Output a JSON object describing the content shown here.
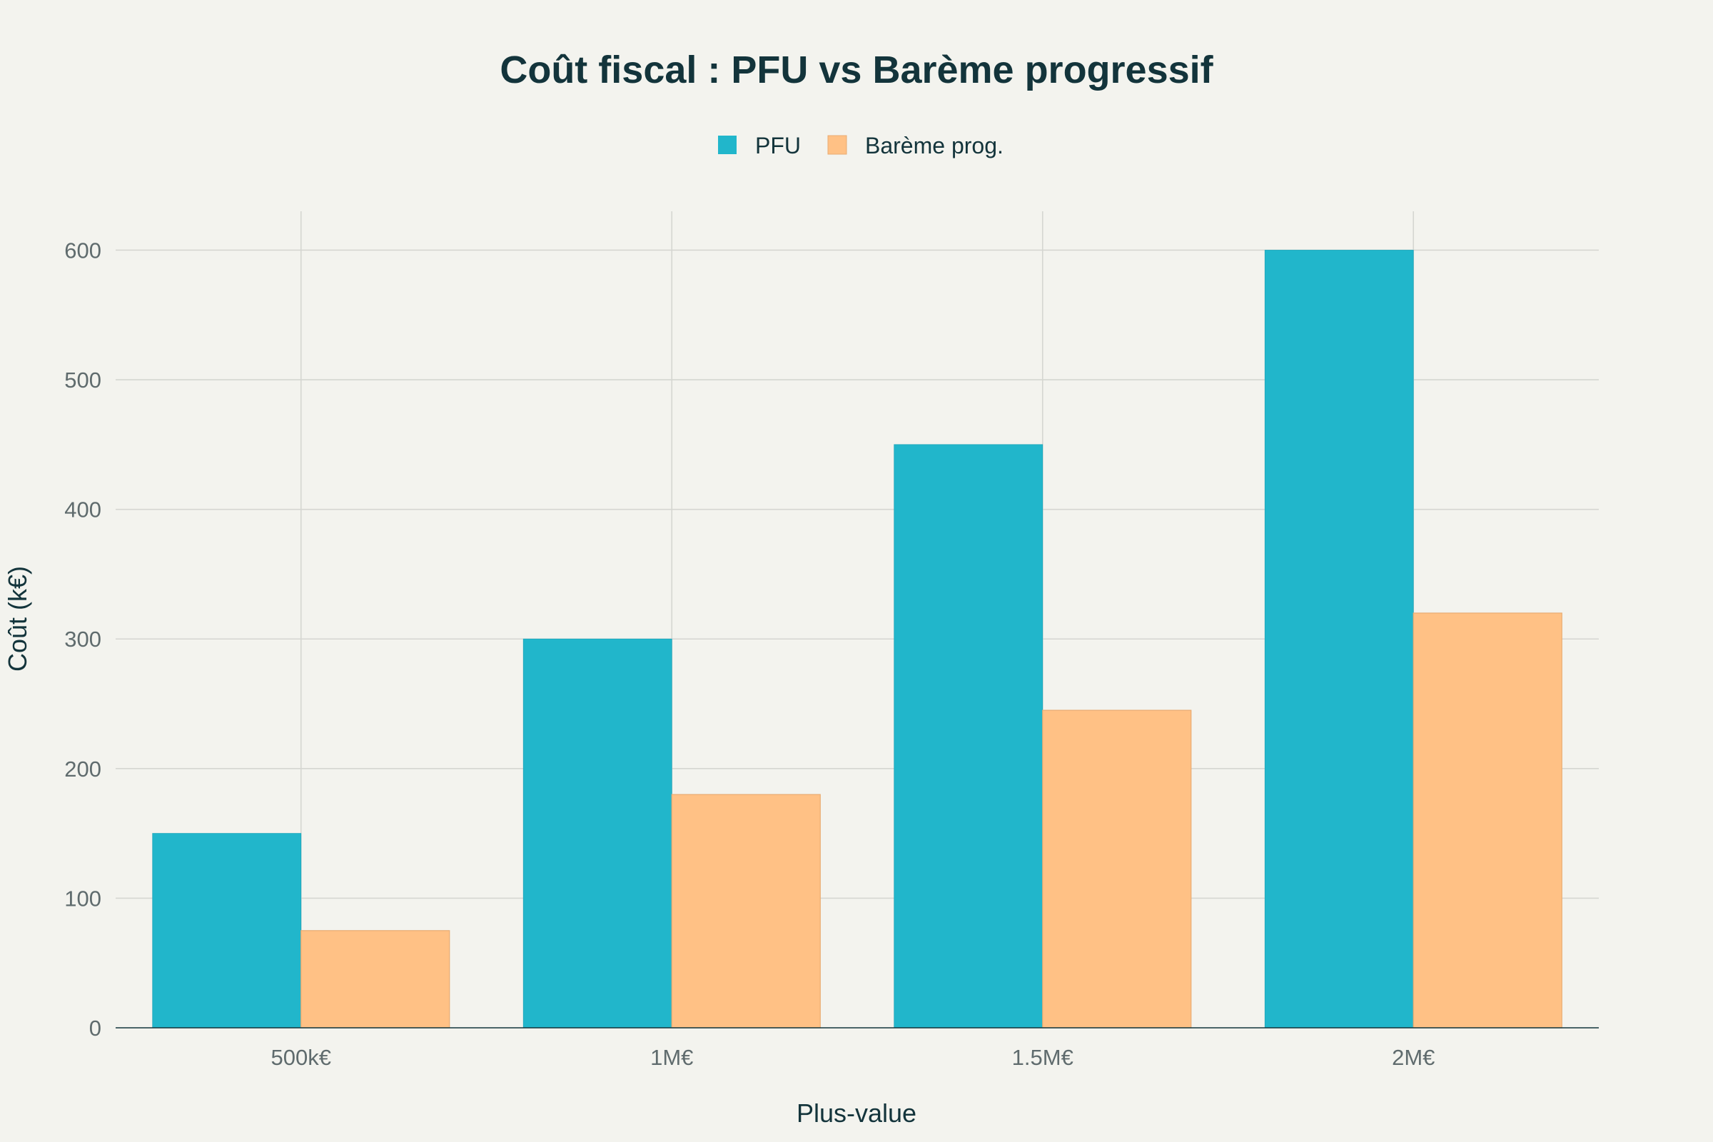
{
  "chart_data": {
    "type": "bar",
    "title": "Coût fiscal : PFU vs Barème progressif",
    "xlabel": "Plus-value",
    "ylabel": "Coût (k€)",
    "categories": [
      "500k€",
      "1M€",
      "1.5M€",
      "2M€"
    ],
    "series": [
      {
        "name": "PFU",
        "color": "#21b6cb",
        "values": [
          150,
          300,
          450,
          600
        ]
      },
      {
        "name": "Barème prog.",
        "color": "#ffc185",
        "values": [
          75,
          180,
          245,
          320
        ]
      }
    ],
    "ylim": [
      0,
      630
    ],
    "yticks": [
      0,
      100,
      200,
      300,
      400,
      500,
      600
    ],
    "grid": true,
    "legend_position": "top-center"
  }
}
